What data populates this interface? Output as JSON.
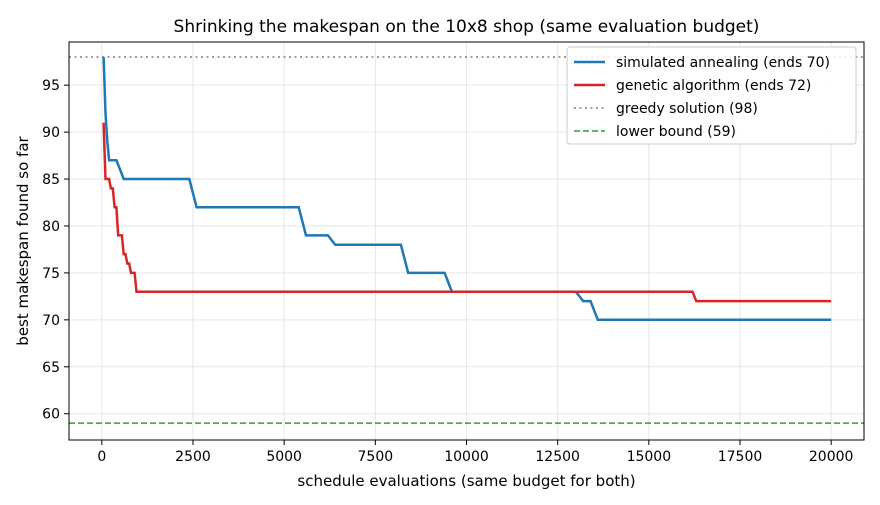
{
  "chart_data": {
    "type": "line",
    "title": "Shrinking the makespan on the 10x8 shop (same evaluation budget)",
    "xlabel": "schedule evaluations (same budget for both)",
    "ylabel": "best makespan found so far",
    "xlim": [
      -900,
      20900
    ],
    "ylim": [
      57.2,
      99.6
    ],
    "xticks": [
      0,
      2500,
      5000,
      7500,
      10000,
      12500,
      15000,
      17500,
      20000
    ],
    "yticks": [
      60,
      65,
      70,
      75,
      80,
      85,
      90,
      95
    ],
    "grid": true,
    "legend_position": "top-right",
    "series": [
      {
        "name": "simulated annealing (ends 70)",
        "color": "#1f77b4",
        "style": "solid",
        "x": [
          50,
          100,
          150,
          200,
          400,
          500,
          600,
          2400,
          2600,
          5400,
          5600,
          6200,
          6400,
          8200,
          8400,
          9400,
          9600,
          13000,
          13200,
          13400,
          13600,
          20000
        ],
        "y": [
          98,
          92,
          89,
          87,
          87,
          86,
          85,
          85,
          82,
          82,
          79,
          79,
          78,
          78,
          75,
          75,
          73,
          73,
          72,
          72,
          70,
          70
        ]
      },
      {
        "name": "genetic algorithm (ends 72)",
        "color": "#d62728",
        "style": "solid",
        "x": [
          50,
          100,
          150,
          200,
          250,
          300,
          350,
          400,
          450,
          500,
          550,
          600,
          650,
          700,
          750,
          800,
          850,
          900,
          950,
          1000,
          16200,
          16300,
          20000
        ],
        "y": [
          91,
          85,
          85,
          85,
          84,
          84,
          82,
          82,
          79,
          79,
          79,
          77,
          77,
          76,
          76,
          75,
          75,
          75,
          73,
          73,
          73,
          72,
          72
        ]
      }
    ],
    "reference_lines": [
      {
        "name": "greedy solution (98)",
        "y": 98,
        "color": "#7f7f7f",
        "style": "dotted"
      },
      {
        "name": "lower bound (59)",
        "y": 59,
        "color": "#2ca02c",
        "style": "dashed"
      }
    ]
  }
}
